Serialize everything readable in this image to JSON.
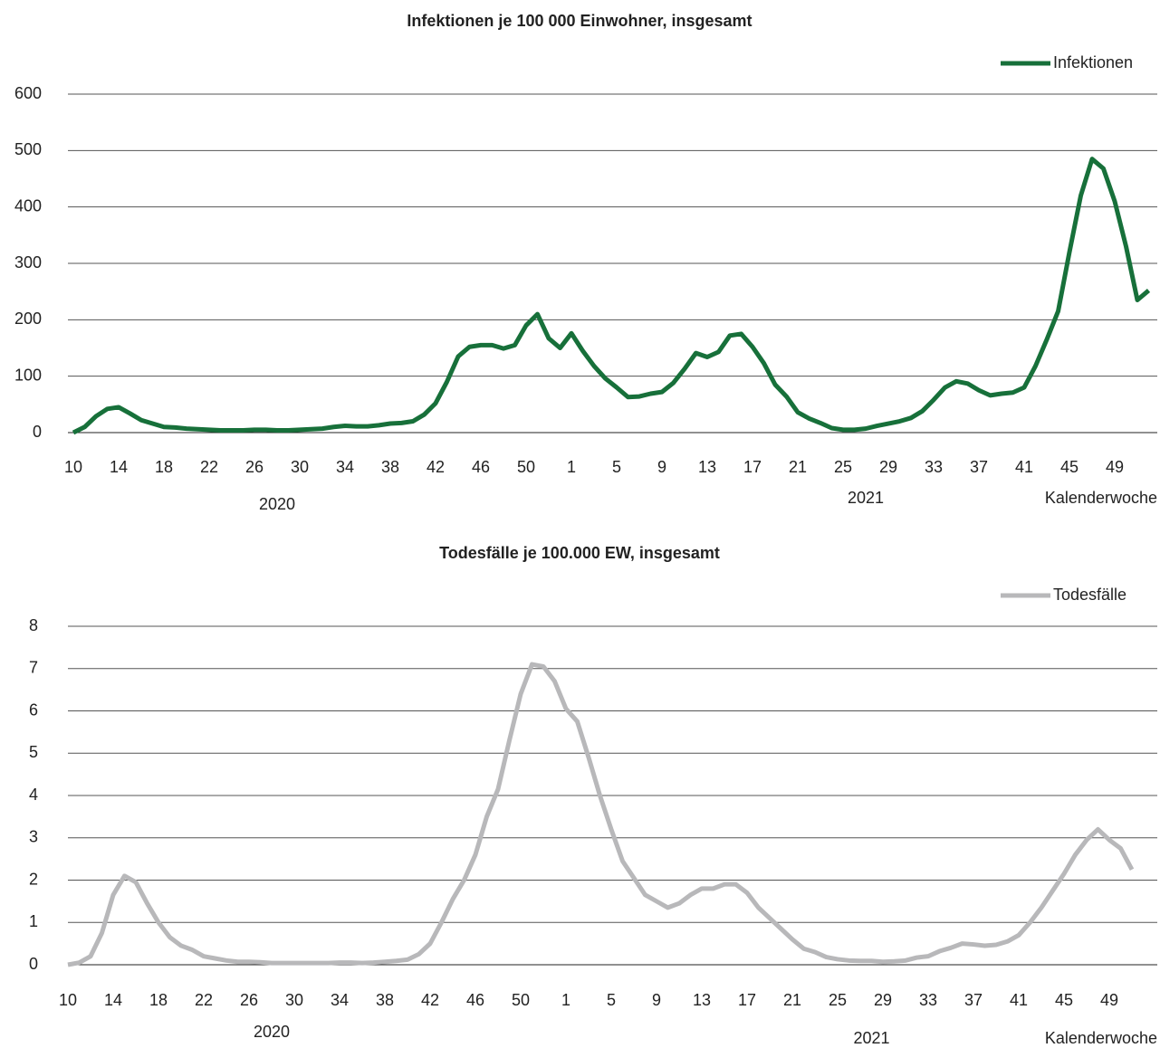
{
  "chart_data": [
    {
      "type": "line",
      "title": "Infektionen je 100 000 Einwohner, insgesamt",
      "x_label": "Kalenderwoche",
      "years": [
        "2020",
        "2021"
      ],
      "categories": [
        "10",
        null,
        null,
        null,
        "14",
        null,
        null,
        null,
        "18",
        null,
        null,
        null,
        "22",
        null,
        null,
        null,
        "26",
        null,
        null,
        null,
        "30",
        null,
        null,
        null,
        "34",
        null,
        null,
        null,
        "38",
        null,
        null,
        null,
        "42",
        null,
        null,
        null,
        "46",
        null,
        null,
        null,
        "50",
        null,
        null,
        null,
        "1",
        null,
        null,
        null,
        "5",
        null,
        null,
        null,
        "9",
        null,
        null,
        null,
        "13",
        null,
        null,
        null,
        "17",
        null,
        null,
        null,
        "21",
        null,
        null,
        null,
        "25",
        null,
        null,
        null,
        "29",
        null,
        null,
        null,
        "33",
        null,
        null,
        null,
        "37",
        null,
        null,
        null,
        "41",
        null,
        null,
        null,
        "45",
        null,
        null,
        null,
        "49",
        null,
        null,
        null
      ],
      "series": [
        {
          "name": "Infektionen",
          "color": "#17703a",
          "values": [
            0,
            10,
            29,
            42,
            45,
            34,
            22,
            16,
            10,
            9,
            7,
            6,
            5,
            4,
            4,
            4,
            5,
            5,
            4,
            4,
            5,
            6,
            7,
            10,
            12,
            11,
            11,
            13,
            16,
            17,
            20,
            32,
            52,
            90,
            135,
            152,
            155,
            155,
            149,
            155,
            190,
            210,
            167,
            150,
            176,
            145,
            118,
            96,
            80,
            63,
            64,
            69,
            72,
            88,
            113,
            141,
            134,
            143,
            172,
            175,
            152,
            123,
            85,
            64,
            36,
            25,
            17,
            8,
            5,
            5,
            7,
            12,
            16,
            20,
            26,
            38,
            58,
            80,
            91,
            87,
            75,
            66,
            69,
            71,
            80,
            118,
            165,
            215,
            320,
            420,
            485,
            468,
            410,
            330,
            235,
            252
          ]
        }
      ],
      "ylim": [
        0,
        600
      ],
      "yticks": [
        0,
        100,
        200,
        300,
        400,
        500,
        600
      ],
      "grid": true,
      "legend": "top-right"
    },
    {
      "type": "line",
      "title": "Todesfälle je 100.000 EW, insgesamt",
      "x_label": "Kalenderwoche",
      "years": [
        "2020",
        "2021"
      ],
      "categories": [
        "10",
        null,
        null,
        null,
        "14",
        null,
        null,
        null,
        "18",
        null,
        null,
        null,
        "22",
        null,
        null,
        null,
        "26",
        null,
        null,
        null,
        "30",
        null,
        null,
        null,
        "34",
        null,
        null,
        null,
        "38",
        null,
        null,
        null,
        "42",
        null,
        null,
        null,
        "46",
        null,
        null,
        null,
        "50",
        null,
        null,
        null,
        "1",
        null,
        null,
        null,
        "5",
        null,
        null,
        null,
        "9",
        null,
        null,
        null,
        "13",
        null,
        null,
        null,
        "17",
        null,
        null,
        null,
        "21",
        null,
        null,
        null,
        "25",
        null,
        null,
        null,
        "29",
        null,
        null,
        null,
        "33",
        null,
        null,
        null,
        "37",
        null,
        null,
        null,
        "41",
        null,
        null,
        null,
        "45",
        null,
        null,
        null,
        "49",
        null,
        null,
        null
      ],
      "series": [
        {
          "name": "Todesfälle",
          "color": "#b8b8ba",
          "values": [
            0,
            0.05,
            0.2,
            0.75,
            1.65,
            2.1,
            1.95,
            1.45,
            1.0,
            0.65,
            0.45,
            0.35,
            0.2,
            0.15,
            0.1,
            0.07,
            0.07,
            0.06,
            0.04,
            0.04,
            0.04,
            0.04,
            0.04,
            0.04,
            0.05,
            0.05,
            0.04,
            0.05,
            0.07,
            0.09,
            0.12,
            0.25,
            0.5,
            1.0,
            1.55,
            2.0,
            2.6,
            3.5,
            4.15,
            5.3,
            6.4,
            7.1,
            7.05,
            6.7,
            6.05,
            5.75,
            4.9,
            4.0,
            3.2,
            2.45,
            2.05,
            1.65,
            1.5,
            1.35,
            1.45,
            1.65,
            1.8,
            1.8,
            1.9,
            1.9,
            1.7,
            1.35,
            1.1,
            0.85,
            0.6,
            0.38,
            0.3,
            0.18,
            0.13,
            0.1,
            0.09,
            0.09,
            0.07,
            0.08,
            0.1,
            0.17,
            0.2,
            0.32,
            0.4,
            0.5,
            0.48,
            0.45,
            0.47,
            0.55,
            0.7,
            1.0,
            1.35,
            1.75,
            2.15,
            2.6,
            2.95,
            3.2,
            2.95,
            2.75,
            2.25,
            null
          ]
        }
      ],
      "ylim": [
        0,
        8
      ],
      "yticks": [
        0,
        1,
        2,
        3,
        4,
        5,
        6,
        7,
        8
      ],
      "grid": true,
      "legend": "top-right"
    }
  ]
}
